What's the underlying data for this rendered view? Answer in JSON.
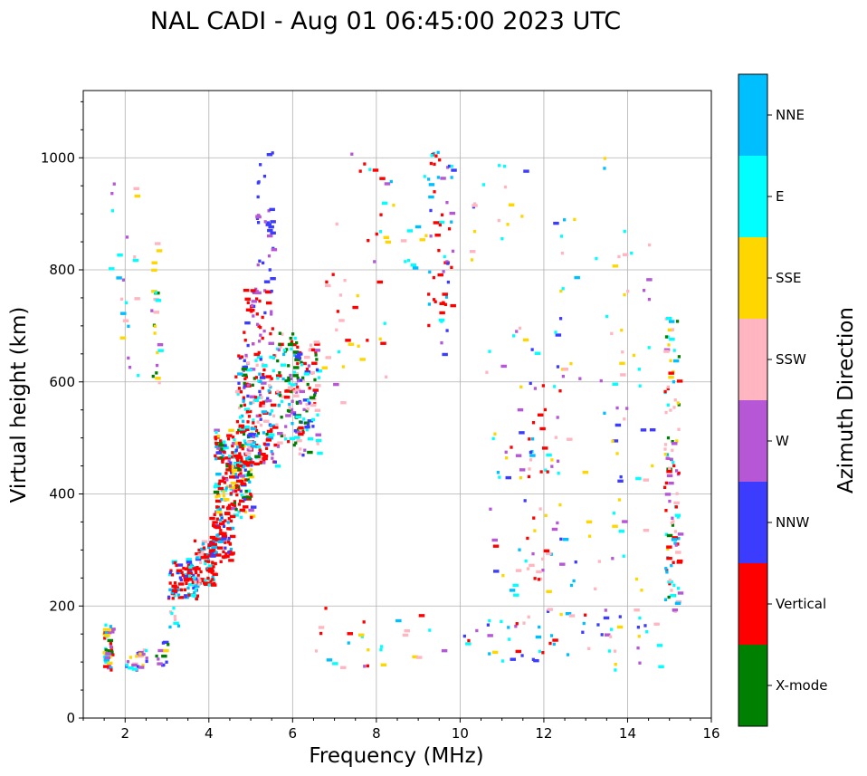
{
  "chart_data": {
    "type": "scatter",
    "title": "NAL CADI - Aug 01 06:45:00 2023 UTC",
    "xlabel": "Frequency (MHz)",
    "ylabel": "Virtual height (km)",
    "xlim": [
      1,
      16
    ],
    "ylim": [
      0,
      1120
    ],
    "xticks": [
      "2",
      "4",
      "6",
      "8",
      "10",
      "12",
      "14",
      "16"
    ],
    "yticks": [
      "0",
      "200",
      "400",
      "600",
      "800",
      "1000"
    ],
    "grid": true,
    "colorbar": {
      "label": "Azimuth Direction",
      "entries": [
        {
          "label": "X-mode",
          "color": "#008000"
        },
        {
          "label": "Vertical",
          "color": "#ff0000"
        },
        {
          "label": "NNW",
          "color": "#3c3cff"
        },
        {
          "label": "W",
          "color": "#b658d6"
        },
        {
          "label": "SSW",
          "color": "#ffb6c1"
        },
        {
          "label": "SSE",
          "color": "#ffd700"
        },
        {
          "label": "E",
          "color": "#00ffff"
        },
        {
          "label": "NNE",
          "color": "#00bfff"
        }
      ]
    },
    "seed": 20230801,
    "clusters": [
      {
        "f": [
          1.45,
          1.65
        ],
        "h": [
          88,
          180
        ],
        "n": 40,
        "mix": [
          "Vertical",
          "SSE",
          "NNE",
          "W",
          "X-mode",
          "E"
        ]
      },
      {
        "f": [
          2.0,
          2.5
        ],
        "h": [
          88,
          130
        ],
        "n": 25,
        "mix": [
          "E",
          "NNW",
          "SSE",
          "W",
          "SSW"
        ]
      },
      {
        "f": [
          2.7,
          3.0
        ],
        "h": [
          88,
          140
        ],
        "n": 12,
        "mix": [
          "W",
          "SSE",
          "NNW",
          "X-mode"
        ]
      },
      {
        "f": [
          3.0,
          3.3
        ],
        "h": [
          165,
          200
        ],
        "n": 8,
        "mix": [
          "E",
          "SSW",
          "NNE"
        ]
      },
      {
        "f": [
          3.0,
          3.7
        ],
        "h": [
          215,
          290
        ],
        "n": 90,
        "mix": [
          "Vertical",
          "Vertical",
          "Vertical",
          "NNW",
          "E",
          "NNE"
        ]
      },
      {
        "f": [
          3.6,
          4.1
        ],
        "h": [
          240,
          320
        ],
        "n": 80,
        "mix": [
          "Vertical",
          "Vertical",
          "Vertical",
          "E",
          "NNE",
          "SSW"
        ]
      },
      {
        "f": [
          4.0,
          4.5
        ],
        "h": [
          280,
          360
        ],
        "n": 70,
        "mix": [
          "Vertical",
          "Vertical",
          "Vertical",
          "NNW",
          "NNE"
        ]
      },
      {
        "f": [
          4.1,
          5.0
        ],
        "h": [
          360,
          520
        ],
        "n": 220,
        "mix": [
          "Vertical",
          "Vertical",
          "Vertical",
          "Vertical",
          "NNW",
          "W",
          "E",
          "SSE",
          "NNE",
          "X-mode"
        ]
      },
      {
        "f": [
          4.6,
          5.6
        ],
        "h": [
          450,
          650
        ],
        "n": 200,
        "mix": [
          "Vertical",
          "Vertical",
          "Vertical",
          "NNW",
          "W",
          "E",
          "SSW",
          "NNE",
          "X-mode"
        ]
      },
      {
        "f": [
          4.8,
          5.5
        ],
        "h": [
          650,
          770
        ],
        "n": 45,
        "mix": [
          "Vertical",
          "Vertical",
          "W",
          "NNW"
        ]
      },
      {
        "f": [
          5.6,
          6.1
        ],
        "h": [
          480,
          700
        ],
        "n": 90,
        "mix": [
          "X-mode",
          "X-mode",
          "E",
          "NNE",
          "Vertical",
          "W",
          "SSW"
        ]
      },
      {
        "f": [
          6.0,
          6.6
        ],
        "h": [
          470,
          680
        ],
        "n": 90,
        "mix": [
          "SSW",
          "SSW",
          "W",
          "NNW",
          "E",
          "X-mode",
          "Vertical"
        ]
      },
      {
        "f": [
          5.1,
          5.5
        ],
        "h": [
          760,
          1015
        ],
        "n": 35,
        "mix": [
          "NNW",
          "NNW",
          "NNW",
          "W"
        ]
      },
      {
        "f": [
          1.6,
          2.3
        ],
        "h": [
          600,
          980
        ],
        "n": 22,
        "mix": [
          "NNE",
          "E",
          "SSE",
          "W",
          "SSW"
        ]
      },
      {
        "f": [
          2.6,
          2.8
        ],
        "h": [
          600,
          850
        ],
        "n": 22,
        "mix": [
          "SSE",
          "SSE",
          "X-mode",
          "E",
          "SSW",
          "W"
        ]
      },
      {
        "f": [
          7.0,
          8.2
        ],
        "h": [
          600,
          1010
        ],
        "n": 28,
        "mix": [
          "Vertical",
          "Vertical",
          "SSW",
          "W",
          "SSE",
          "E"
        ]
      },
      {
        "f": [
          8.0,
          9.2
        ],
        "h": [
          780,
          1010
        ],
        "n": 14,
        "mix": [
          "SSE",
          "E",
          "NNE",
          "SSW"
        ]
      },
      {
        "f": [
          9.2,
          9.8
        ],
        "h": [
          640,
          1015
        ],
        "n": 60,
        "mix": [
          "Vertical",
          "Vertical",
          "Vertical",
          "W",
          "NNW",
          "E",
          "NNE"
        ]
      },
      {
        "f": [
          10.2,
          11.8
        ],
        "h": [
          820,
          990
        ],
        "n": 16,
        "mix": [
          "NNW",
          "W",
          "SSE",
          "SSW",
          "E"
        ]
      },
      {
        "f": [
          10.6,
          12.4
        ],
        "h": [
          100,
          700
        ],
        "n": 80,
        "mix": [
          "W",
          "SSW",
          "NNW",
          "E",
          "SSE",
          "Vertical",
          "NNE"
        ]
      },
      {
        "f": [
          11.6,
          12.0
        ],
        "h": [
          230,
          560
        ],
        "n": 18,
        "mix": [
          "Vertical",
          "Vertical",
          "SSW"
        ]
      },
      {
        "f": [
          12.0,
          13.8
        ],
        "h": [
          88,
          1015
        ],
        "n": 55,
        "mix": [
          "SSE",
          "SSE",
          "SSW",
          "W",
          "E",
          "NNW",
          "NNE"
        ]
      },
      {
        "f": [
          13.6,
          14.6
        ],
        "h": [
          100,
          900
        ],
        "n": 45,
        "mix": [
          "SSE",
          "SSE",
          "W",
          "SSW",
          "E",
          "NNW"
        ]
      },
      {
        "f": [
          14.85,
          15.2
        ],
        "h": [
          190,
          720
        ],
        "n": 110,
        "mix": [
          "SSW",
          "SSW",
          "Vertical",
          "Vertical",
          "E",
          "X-mode",
          "NNE",
          "SSE",
          "W"
        ]
      },
      {
        "f": [
          6.4,
          9.6
        ],
        "h": [
          88,
          200
        ],
        "n": 26,
        "mix": [
          "Vertical",
          "W",
          "SSE",
          "E",
          "NNW",
          "SSW",
          "NNE"
        ]
      },
      {
        "f": [
          10.0,
          14.8
        ],
        "h": [
          88,
          200
        ],
        "n": 30,
        "mix": [
          "SSE",
          "W",
          "NNW",
          "SSW",
          "E",
          "Vertical"
        ]
      },
      {
        "f": [
          6.6,
          7.6
        ],
        "h": [
          560,
          800
        ],
        "n": 12,
        "mix": [
          "SSE",
          "W",
          "Vertical",
          "SSW"
        ]
      }
    ]
  }
}
